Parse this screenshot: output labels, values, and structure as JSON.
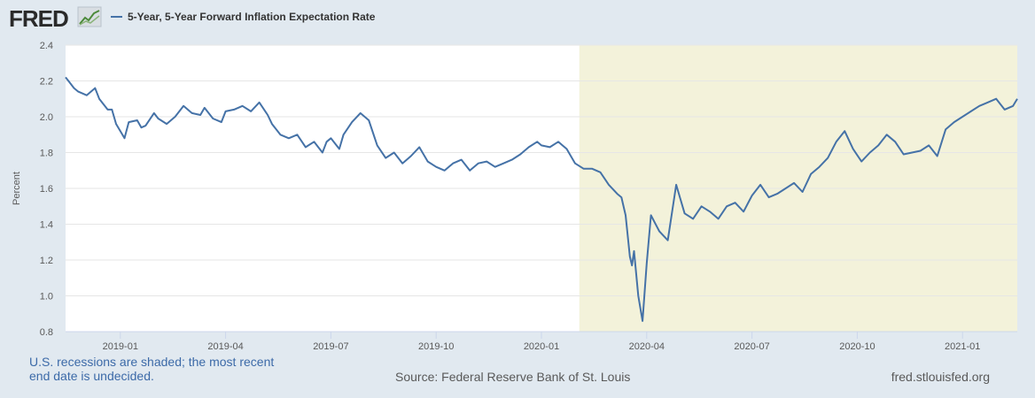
{
  "header": {
    "logo_text": "FRED",
    "logo_icon": "chart-line-icon",
    "legend_label": "5-Year, 5-Year Forward Inflation Expectation Rate"
  },
  "footer": {
    "recession_note_line1": "U.S. recessions are shaded; the most recent",
    "recession_note_line2": "end date is undecided.",
    "source": "Source: Federal Reserve Bank of St. Louis",
    "url": "fred.stlouisfed.org"
  },
  "colors": {
    "background": "#e1e9f0",
    "plot_background": "#ffffff",
    "recession_shade": "#f3f2da",
    "series_line": "#4572a7",
    "grid": "#e6e6e6",
    "text": "#595959",
    "note_text": "#3c6aa8"
  },
  "chart_data": {
    "type": "line",
    "title": "5-Year, 5-Year Forward Inflation Expectation Rate",
    "xlabel": "",
    "ylabel": "Percent",
    "ylim": [
      0.8,
      2.4
    ],
    "yticks": [
      "0.8",
      "1.0",
      "1.2",
      "1.4",
      "1.6",
      "1.8",
      "2.0",
      "2.2",
      "2.4"
    ],
    "xlim": [
      2018.87,
      2021.13
    ],
    "xticks": [
      {
        "value": 2019.0,
        "label": "2019-01"
      },
      {
        "value": 2019.25,
        "label": "2019-04"
      },
      {
        "value": 2019.5,
        "label": "2019-07"
      },
      {
        "value": 2019.75,
        "label": "2019-10"
      },
      {
        "value": 2020.0,
        "label": "2020-01"
      },
      {
        "value": 2020.25,
        "label": "2020-04"
      },
      {
        "value": 2020.5,
        "label": "2020-07"
      },
      {
        "value": 2020.75,
        "label": "2020-10"
      },
      {
        "value": 2021.0,
        "label": "2021-01"
      }
    ],
    "recession": {
      "start": 2020.09,
      "end": 2021.13
    },
    "grid": true,
    "legend": "top-left",
    "series": [
      {
        "name": "5-Year, 5-Year Forward Inflation Expectation Rate",
        "x": [
          2018.87,
          2018.88,
          2018.89,
          2018.9,
          2018.92,
          2018.94,
          2018.95,
          2018.97,
          2018.98,
          2018.99,
          2019.0,
          2019.01,
          2019.02,
          2019.04,
          2019.05,
          2019.06,
          2019.08,
          2019.09,
          2019.11,
          2019.13,
          2019.15,
          2019.17,
          2019.19,
          2019.2,
          2019.22,
          2019.24,
          2019.25,
          2019.27,
          2019.29,
          2019.31,
          2019.33,
          2019.35,
          2019.36,
          2019.38,
          2019.4,
          2019.42,
          2019.44,
          2019.46,
          2019.48,
          2019.49,
          2019.5,
          2019.52,
          2019.53,
          2019.55,
          2019.57,
          2019.59,
          2019.61,
          2019.63,
          2019.65,
          2019.67,
          2019.69,
          2019.71,
          2019.73,
          2019.75,
          2019.77,
          2019.79,
          2019.81,
          2019.83,
          2019.85,
          2019.87,
          2019.89,
          2019.91,
          2019.93,
          2019.95,
          2019.97,
          2019.99,
          2020.0,
          2020.02,
          2020.04,
          2020.06,
          2020.08,
          2020.1,
          2020.12,
          2020.14,
          2020.16,
          2020.18,
          2020.19,
          2020.2,
          2020.21,
          2020.215,
          2020.22,
          2020.23,
          2020.24,
          2020.25,
          2020.26,
          2020.28,
          2020.3,
          2020.32,
          2020.34,
          2020.36,
          2020.38,
          2020.4,
          2020.42,
          2020.44,
          2020.46,
          2020.48,
          2020.5,
          2020.52,
          2020.54,
          2020.56,
          2020.58,
          2020.6,
          2020.62,
          2020.64,
          2020.66,
          2020.68,
          2020.7,
          2020.72,
          2020.74,
          2020.76,
          2020.78,
          2020.8,
          2020.82,
          2020.84,
          2020.86,
          2020.88,
          2020.9,
          2020.92,
          2020.94,
          2020.96,
          2020.98,
          2021.0,
          2021.02,
          2021.04,
          2021.06,
          2021.08,
          2021.1,
          2021.12,
          2021.13
        ],
        "values": [
          2.22,
          2.19,
          2.16,
          2.14,
          2.12,
          2.16,
          2.1,
          2.04,
          2.04,
          1.96,
          1.92,
          1.88,
          1.97,
          1.98,
          1.94,
          1.95,
          2.02,
          1.99,
          1.96,
          2.0,
          2.06,
          2.02,
          2.01,
          2.05,
          1.99,
          1.97,
          2.03,
          2.04,
          2.06,
          2.03,
          2.08,
          2.01,
          1.96,
          1.9,
          1.88,
          1.9,
          1.83,
          1.86,
          1.8,
          1.86,
          1.88,
          1.82,
          1.9,
          1.97,
          2.02,
          1.98,
          1.84,
          1.77,
          1.8,
          1.74,
          1.78,
          1.83,
          1.75,
          1.72,
          1.7,
          1.74,
          1.76,
          1.7,
          1.74,
          1.75,
          1.72,
          1.74,
          1.76,
          1.79,
          1.83,
          1.86,
          1.84,
          1.83,
          1.86,
          1.82,
          1.74,
          1.71,
          1.71,
          1.69,
          1.62,
          1.57,
          1.55,
          1.45,
          1.22,
          1.17,
          1.25,
          1.0,
          0.86,
          1.18,
          1.45,
          1.36,
          1.31,
          1.62,
          1.46,
          1.43,
          1.5,
          1.47,
          1.43,
          1.5,
          1.52,
          1.47,
          1.56,
          1.62,
          1.55,
          1.57,
          1.6,
          1.63,
          1.58,
          1.68,
          1.72,
          1.77,
          1.86,
          1.92,
          1.82,
          1.75,
          1.8,
          1.84,
          1.9,
          1.86,
          1.79,
          1.8,
          1.81,
          1.84,
          1.78,
          1.93,
          1.97,
          2.0,
          2.03,
          2.06,
          2.08,
          2.1,
          2.04,
          2.06,
          2.1
        ]
      }
    ]
  }
}
